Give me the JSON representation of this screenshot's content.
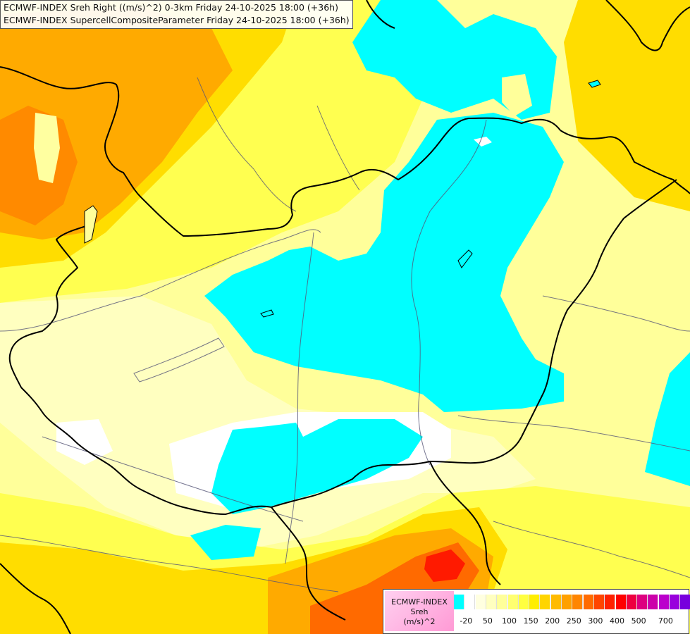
{
  "header": {
    "line1": "ECMWF-INDEX Sreh Right ((m/s)^2) 0-3km Friday 24-10-2025 18:00 (+36h)",
    "line2": "ECMWF-INDEX SupercellCompositeParameter Friday 24-10-2025 18:00 (+36h)"
  },
  "legend": {
    "source": "ECMWF-INDEX",
    "variable": "Sreh",
    "unit": "(m/s)^2",
    "colors": [
      "#00ffff",
      "#ffffff",
      "#ffffe0",
      "#ffffc0",
      "#ffff9a",
      "#ffff70",
      "#ffff40",
      "#ffee00",
      "#ffd500",
      "#ffbb00",
      "#ffa000",
      "#ff8500",
      "#ff6a00",
      "#ff4500",
      "#ff2000",
      "#ff0000",
      "#ee0040",
      "#dd0080",
      "#cc00aa",
      "#bb00cc",
      "#9900dd",
      "#7700dd",
      "#5500cc",
      "#3300aa",
      "#110088"
    ],
    "ticks": [
      "-20",
      "50",
      "100",
      "150",
      "200",
      "250",
      "300",
      "400",
      "500",
      "700"
    ]
  },
  "map": {
    "field_colors": {
      "cyan": "#00ffff",
      "white": "#ffffff",
      "pale": "#ffffc0",
      "light_yellow": "#ffff9a",
      "yellow": "#ffff50",
      "gold": "#ffdd00",
      "orange": "#ffaa00",
      "red_orange": "#ff6a00",
      "red": "#ff1a00"
    },
    "border_color": "#000000",
    "river_color": "#555577"
  }
}
